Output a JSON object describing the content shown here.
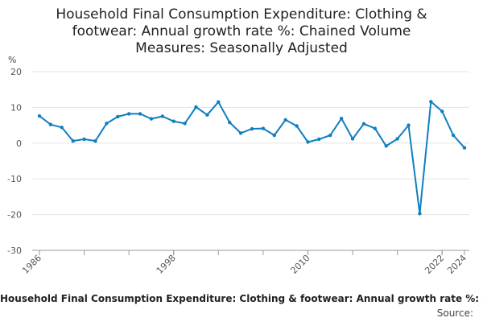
{
  "chart_data": {
    "type": "line",
    "title_lines": [
      "Household Final Consumption Expenditure: Clothing &",
      "footwear: Annual growth rate %: Chained Volume",
      "Measures: Seasonally Adjusted"
    ],
    "ylabel": "%",
    "ylim": [
      -30,
      20
    ],
    "yticks": [
      20,
      10,
      0,
      -10,
      -20,
      -30
    ],
    "xlim": [
      1986,
      2024
    ],
    "xticks": [
      1986,
      1998,
      2010,
      2022,
      2024
    ],
    "series": [
      {
        "name": "Household Final Consumption Expenditure: Clothing & footwear: Annual growth rate %: Chained Volume Measures: Seasonally Adjusted",
        "color": "#0f7fbf",
        "x": [
          1986,
          1987,
          1988,
          1989,
          1990,
          1991,
          1992,
          1993,
          1994,
          1995,
          1996,
          1997,
          1998,
          1999,
          2000,
          2001,
          2002,
          2003,
          2004,
          2005,
          2006,
          2007,
          2008,
          2009,
          2010,
          2011,
          2012,
          2013,
          2014,
          2015,
          2016,
          2017,
          2018,
          2019,
          2020,
          2021,
          2022,
          2023,
          2024
        ],
        "values": [
          7.6,
          5.2,
          4.4,
          0.6,
          1.1,
          0.6,
          5.5,
          7.4,
          8.2,
          8.2,
          6.8,
          7.5,
          6.1,
          5.5,
          10.1,
          7.9,
          11.5,
          5.8,
          2.8,
          4.0,
          4.1,
          2.2,
          6.5,
          4.8,
          0.3,
          1.1,
          2.2,
          6.9,
          1.2,
          5.4,
          4.1,
          -0.8,
          1.2,
          5.0,
          -19.7,
          11.6,
          8.9,
          2.2,
          -1.3
        ]
      }
    ],
    "footer_series": "Household Final Consumption Expenditure: Clothing & footwear: Annual growth rate %: Chained Volume Measures: Seasonally Adjusted",
    "source_label": "Source:"
  }
}
